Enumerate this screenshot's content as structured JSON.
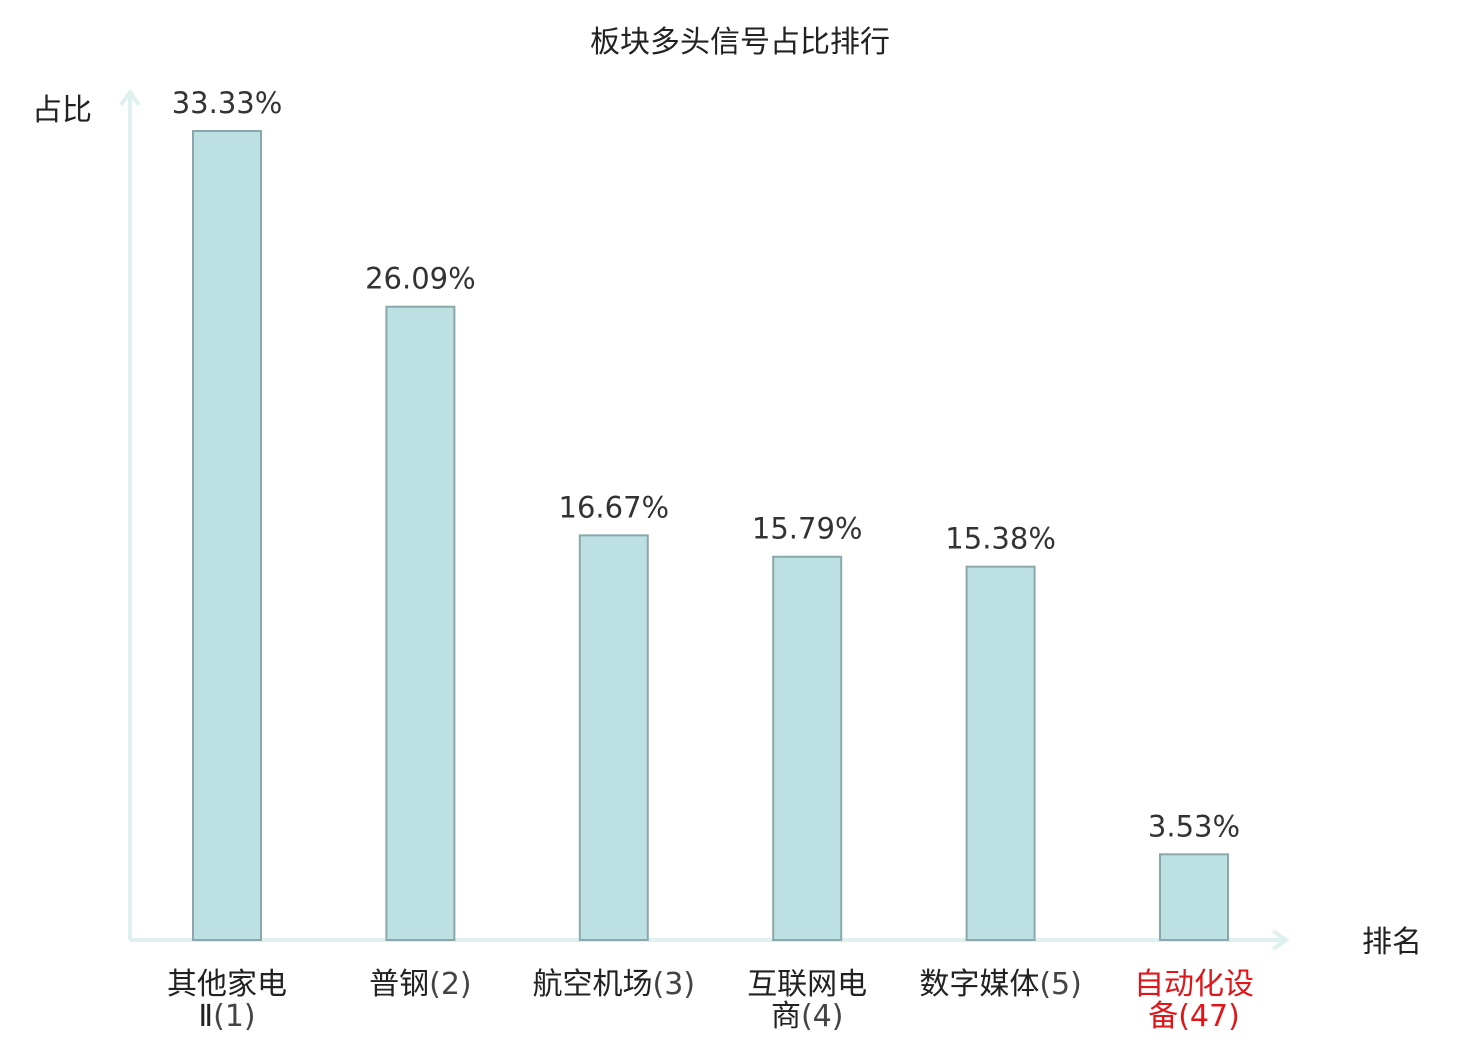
{
  "chart_data": {
    "type": "bar",
    "title": "板块多头信号占比排行",
    "ylabel": "占比",
    "xlabel": "排名",
    "ylim": [
      0,
      35
    ],
    "grid": false,
    "categories": [
      {
        "name_lines": [
          "其他家电",
          "Ⅱ"
        ],
        "rank": "(1)",
        "highlight": false
      },
      {
        "name_lines": [
          "普钢"
        ],
        "rank": "(2)",
        "highlight": false
      },
      {
        "name_lines": [
          "航空机场"
        ],
        "rank": "(3)",
        "highlight": false
      },
      {
        "name_lines": [
          "互联网电",
          "商"
        ],
        "rank": "(4)",
        "highlight": false
      },
      {
        "name_lines": [
          "数字媒体"
        ],
        "rank": "(5)",
        "highlight": false
      },
      {
        "name_lines": [
          "自动化设",
          "备"
        ],
        "rank": "(47)",
        "highlight": true
      }
    ],
    "values": [
      33.33,
      26.09,
      16.67,
      15.79,
      15.38,
      3.53
    ],
    "value_labels": [
      "33.33%",
      "26.09%",
      "16.67%",
      "15.79%",
      "15.38%",
      "3.53%"
    ]
  },
  "colors": {
    "bar_fill": "#bde0e3",
    "bar_stroke": "#8aa8aa",
    "axis": "#dff1ee",
    "text": "#222222",
    "value_text": "#333333",
    "rank_text": "#444444",
    "highlight": "#e0161a"
  }
}
